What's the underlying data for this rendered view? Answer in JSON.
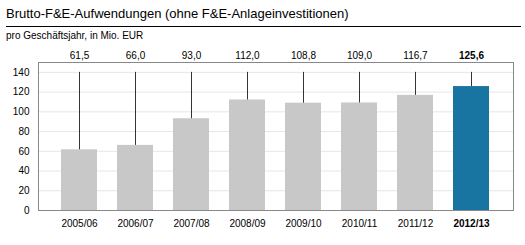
{
  "chart_data": {
    "type": "bar",
    "title": "Brutto-F&E-Aufwendungen (ohne F&E-Anlageinvestitionen)",
    "subtitle": "pro Geschäftsjahr, in Mio. EUR",
    "categories": [
      "2005/06",
      "2006/07",
      "2007/08",
      "2008/09",
      "2009/10",
      "2010/11",
      "2011/12",
      "2012/13"
    ],
    "values": [
      61.5,
      66.0,
      93.0,
      112.0,
      108.8,
      109.0,
      116.7,
      125.6
    ],
    "value_labels": [
      "61,5",
      "66,0",
      "93,0",
      "112,0",
      "108,8",
      "109,0",
      "116,7",
      "125,6"
    ],
    "colors": [
      "#c8c8c8",
      "#c8c8c8",
      "#c8c8c8",
      "#c8c8c8",
      "#c8c8c8",
      "#c8c8c8",
      "#c8c8c8",
      "#1874a0"
    ],
    "ylim": [
      0,
      150
    ],
    "yticks": [
      0,
      20,
      40,
      60,
      80,
      100,
      120,
      140
    ],
    "grid": true,
    "data_labels": true
  }
}
